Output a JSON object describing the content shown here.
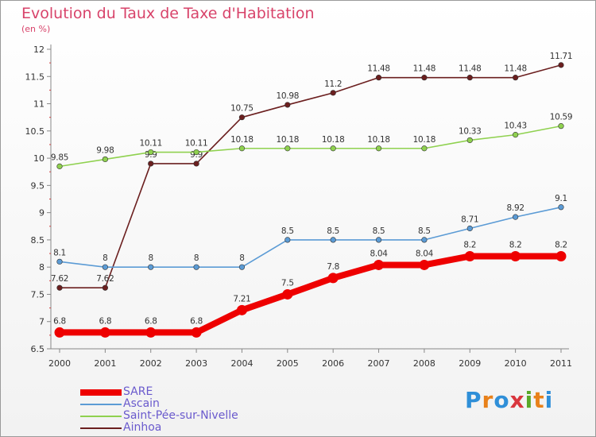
{
  "title": "Evolution du Taux de Taxe d'Habitation",
  "subtitle": "(en %)",
  "logo_text": "Proxiti",
  "chart_data": {
    "type": "line",
    "title": "Evolution du Taux de Taxe d'Habitation",
    "subtitle": "(en %)",
    "xlabel": "",
    "ylabel": "",
    "x": [
      "2000",
      "2001",
      "2002",
      "2003",
      "2004",
      "2005",
      "2006",
      "2007",
      "2008",
      "2009",
      "2010",
      "2011"
    ],
    "ylim": [
      6.5,
      12
    ],
    "yticks": [
      "6.5",
      "7",
      "7.5",
      "8",
      "8.5",
      "9",
      "9.5",
      "10",
      "10.5",
      "11",
      "11.5",
      "12"
    ],
    "grid": false,
    "legend_position": "bottom-left",
    "series": [
      {
        "name": "SARE",
        "color": "#ee0000",
        "values": [
          6.8,
          6.8,
          6.8,
          6.8,
          7.21,
          7.5,
          7.8,
          8.04,
          8.04,
          8.2,
          8.2,
          8.2
        ],
        "labels": [
          "6.8",
          "6.8",
          "6.8",
          "6.8",
          "7.21",
          "7.5",
          "7.8",
          "8.04",
          "8.04",
          "8.2",
          "8.2",
          "8.2"
        ]
      },
      {
        "name": "Ascain",
        "color": "#5b9bd5",
        "values": [
          8.1,
          8,
          8,
          8,
          8,
          8.5,
          8.5,
          8.5,
          8.5,
          8.71,
          8.92,
          9.1
        ],
        "labels": [
          "8.1",
          "8",
          "8",
          "8",
          "8",
          "8.5",
          "8.5",
          "8.5",
          "8.5",
          "8.71",
          "8.92",
          "9.1"
        ]
      },
      {
        "name": "Saint-Pée-sur-Nivelle",
        "color": "#8fd14f",
        "values": [
          9.85,
          9.98,
          10.11,
          10.11,
          10.18,
          10.18,
          10.18,
          10.18,
          10.18,
          10.33,
          10.43,
          10.59
        ],
        "labels": [
          "9.85",
          "9.98",
          "10.11",
          "10.11",
          "10.18",
          "10.18",
          "10.18",
          "10.18",
          "10.18",
          "10.33",
          "10.43",
          "10.59"
        ]
      },
      {
        "name": "Ainhoa",
        "color": "#6b1f1f",
        "values": [
          7.62,
          7.62,
          9.9,
          9.9,
          10.75,
          10.98,
          11.2,
          11.48,
          11.48,
          11.48,
          11.48,
          11.71
        ],
        "labels": [
          "7.62",
          "7.62",
          "9.9",
          "9.9",
          "10.75",
          "10.98",
          "11.2",
          "11.48",
          "11.48",
          "11.48",
          "11.48",
          "11.71"
        ]
      }
    ]
  }
}
